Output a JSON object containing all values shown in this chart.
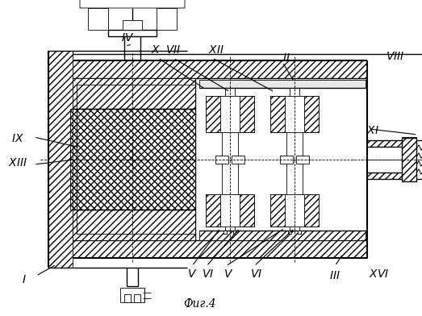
{
  "title": "Фиг.4",
  "bg_color": "#ffffff",
  "lw_main": 1.0,
  "lw_thin": 0.6,
  "lw_thick": 1.5
}
